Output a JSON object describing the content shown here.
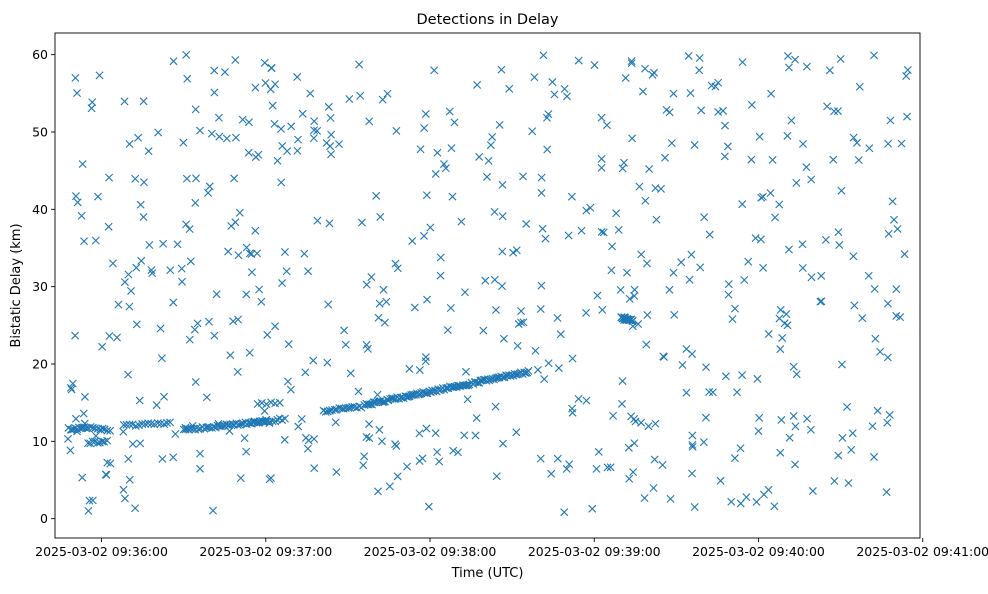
{
  "chart_data": {
    "type": "scatter",
    "title": "Detections in Delay",
    "xlabel": "Time (UTC)",
    "ylabel": "Bistatic Delay (km)",
    "marker": "x",
    "color": "#1f77b4",
    "grid": false,
    "legend": "none",
    "xlim": [
      "2025-03-02 09:35:43",
      "2025-03-02 09:40:59"
    ],
    "ylim": [
      -2.5,
      62.8
    ],
    "x_ticks": [
      "2025-03-02 09:36:00",
      "2025-03-02 09:37:00",
      "2025-03-02 09:38:00",
      "2025-03-02 09:39:00",
      "2025-03-02 09:40:00",
      "2025-03-02 09:41:00"
    ],
    "y_ticks": [
      0,
      10,
      20,
      30,
      40,
      50,
      60
    ],
    "tracks": [
      {
        "start": "2025-03-02 09:35:48",
        "end": "2025-03-02 09:35:55",
        "delay_start": 11.6,
        "delay_end": 11.7,
        "count": 12
      },
      {
        "start": "2025-03-02 09:35:55",
        "end": "2025-03-02 09:36:02",
        "delay_start": 9.8,
        "delay_end": 10.0,
        "count": 9
      },
      {
        "start": "2025-03-02 09:35:56",
        "end": "2025-03-02 09:36:03",
        "delay_start": 11.8,
        "delay_end": 11.5,
        "count": 9
      },
      {
        "start": "2025-03-02 09:36:08",
        "end": "2025-03-02 09:36:25",
        "delay_start": 12.0,
        "delay_end": 12.4,
        "count": 16
      },
      {
        "start": "2025-03-02 09:36:30",
        "end": "2025-03-02 09:37:00",
        "delay_start": 11.5,
        "delay_end": 12.6,
        "count": 45
      },
      {
        "start": "2025-03-02 09:36:55",
        "end": "2025-03-02 09:37:07",
        "delay_start": 12.3,
        "delay_end": 12.9,
        "count": 14
      },
      {
        "start": "2025-03-02 09:36:57",
        "end": "2025-03-02 09:37:05",
        "delay_start": 14.8,
        "delay_end": 15.0,
        "count": 6
      },
      {
        "start": "2025-03-02 09:37:21",
        "end": "2025-03-02 09:37:35",
        "delay_start": 13.9,
        "delay_end": 14.5,
        "count": 18
      },
      {
        "start": "2025-03-02 09:37:36",
        "end": "2025-03-02 09:38:36",
        "delay_start": 14.7,
        "delay_end": 19.0,
        "count": 110
      },
      {
        "start": "2025-03-02 09:39:10",
        "end": "2025-03-02 09:39:14",
        "delay_start": 26.0,
        "delay_end": 25.6,
        "count": 22
      }
    ],
    "clutter": {
      "count": 600,
      "x_range": [
        "2025-03-02 09:35:47",
        "2025-03-02 09:40:55"
      ],
      "y_range": [
        0.5,
        60
      ]
    }
  }
}
